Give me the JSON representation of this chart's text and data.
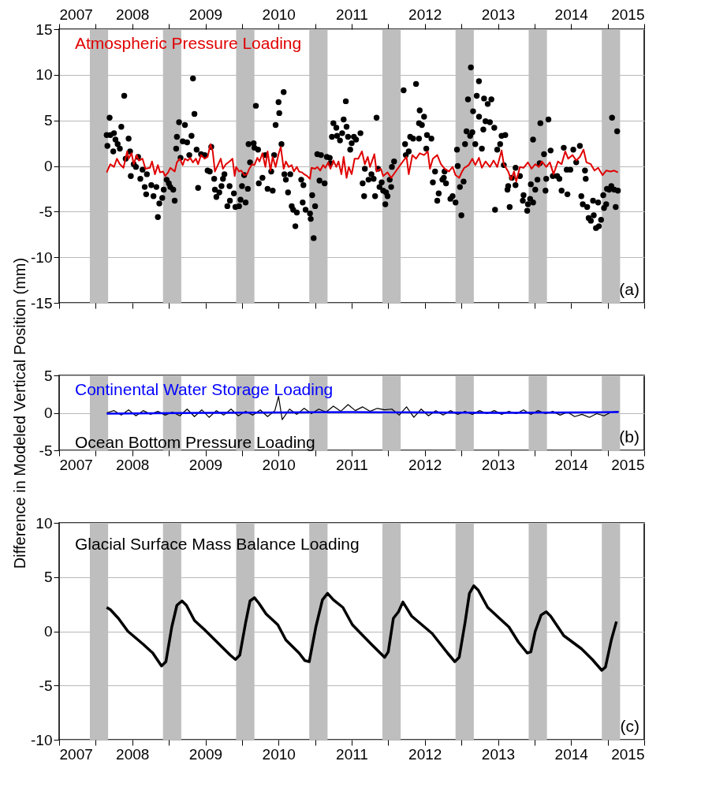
{
  "chart_data": [
    {
      "type": "scatter",
      "ylabel": null,
      "annotations": [
        "(a)"
      ],
      "grid": "y",
      "tick_labels": "y",
      "xlim": [
        2007,
        2015
      ],
      "xticks": [
        2007,
        {
          "value": 2007.5,
          "label": null
        },
        2008,
        {
          "value": 2008.5,
          "label": null
        },
        2009,
        {
          "value": 2009.5,
          "label": null
        },
        2010,
        {
          "value": 2010.5,
          "label": null
        },
        2011,
        {
          "value": 2011.5,
          "label": null
        },
        2012,
        {
          "value": 2012.5,
          "label": null
        },
        2013,
        {
          "value": 2013.5,
          "label": null
        },
        2014,
        {
          "value": 2014.5,
          "label": null
        },
        2015
      ],
      "x2lim": [
        2007,
        2015
      ],
      "x2ticks": [
        2007,
        {
          "value": 2007.5,
          "label": null
        },
        2008,
        {
          "value": 2008.5,
          "label": null
        },
        2009,
        {
          "value": 2009.5,
          "label": null
        },
        2010,
        {
          "value": 2010.5,
          "label": null
        },
        2011,
        {
          "value": 2011.5,
          "label": null
        },
        2012,
        {
          "value": 2012.5,
          "label": null
        },
        2013,
        {
          "value": 2013.5,
          "label": null
        },
        2014,
        {
          "value": 2014.5,
          "label": null
        },
        2015
      ],
      "ylim": [
        -15,
        15
      ],
      "yticks": [
        -15,
        -10,
        -5,
        0,
        5,
        10,
        15
      ],
      "bands": [
        {
          "axis": "x",
          "from": 2007.42,
          "to": 2007.67,
          "color": "#bebebe"
        },
        {
          "axis": "x",
          "from": 2008.42,
          "to": 2008.67,
          "color": "#bebebe"
        },
        {
          "axis": "x",
          "from": 2009.42,
          "to": 2009.67,
          "color": "#bebebe"
        },
        {
          "axis": "x",
          "from": 2010.42,
          "to": 2010.67,
          "color": "#bebebe"
        },
        {
          "axis": "x",
          "from": 2011.42,
          "to": 2011.67,
          "color": "#bebebe"
        },
        {
          "axis": "x",
          "from": 2012.42,
          "to": 2012.67,
          "color": "#bebebe"
        },
        {
          "axis": "x",
          "from": 2013.42,
          "to": 2013.67,
          "color": "#bebebe"
        },
        {
          "axis": "x",
          "from": 2014.42,
          "to": 2014.67,
          "color": "#bebebe"
        }
      ],
      "series": [
        {
          "color": "#000000",
          "marker": "circle",
          "x": [
            2007.69,
            2007.65,
            2007.7,
            2007.75,
            2007.66,
            2007.74,
            2007.77,
            2007.8,
            2007.83,
            2007.89,
            2007.85,
            2007.95,
            2007.91,
            2007.97,
            2008.02,
            2008.05,
            2008.08,
            2007.98,
            2008.14,
            2008.11,
            2008.17,
            2008.2,
            2008.19,
            2008.26,
            2008.29,
            2008.33,
            2008.35,
            2008.37,
            2008.41,
            2008.43,
            2008.47,
            2008.5,
            2008.52,
            2008.56,
            2008.58,
            2008.6,
            2008.61,
            2008.64,
            2008.72,
            2008.66,
            2008.69,
            2008.75,
            2008.78,
            2008.81,
            2008.83,
            2008.85,
            2008.88,
            2008.9,
            2008.94,
            2008.99,
            2009.03,
            2009.06,
            2009.08,
            2009.12,
            2009.13,
            2009.15,
            2009.19,
            2009.22,
            2009.24,
            2009.26,
            2009.3,
            2009.33,
            2009.335,
            2009.39,
            2009.41,
            2009.46,
            2009.48,
            2009.5,
            2009.53,
            2009.55,
            2009.58,
            2009.59,
            2009.66,
            2009.67,
            2009.69,
            2009.61,
            2009.72,
            2009.73,
            2009.78,
            2009.82,
            2009.85,
            2009.92,
            2009.9,
            2009.94,
            2009.96,
            2010.0,
            2010.01,
            2010.04,
            2010.07,
            2010.08,
            2010.1,
            2010.13,
            2010.16,
            2010.18,
            2010.2,
            2010.23,
            2010.25,
            2010.31,
            2010.33,
            2010.34,
            2010.37,
            2010.43,
            2010.44,
            2010.46,
            2010.48,
            2010.5,
            2010.53,
            2010.56,
            2010.58,
            2010.63,
            2010.66,
            2010.7,
            2010.71,
            2010.75,
            2010.79,
            2010.73,
            2010.8,
            2010.84,
            2010.89,
            2010.92,
            2010.93,
            2010.87,
            2010.95,
            2010.98,
            2011.0,
            2011.03,
            2011.06,
            2011.12,
            2011.34,
            2011.15,
            2011.18,
            2011.23,
            2011.27,
            2011.17,
            2011.32,
            2011.3,
            2011.36,
            2011.38,
            2011.41,
            2011.43,
            2011.47,
            2011.49,
            2011.46,
            2011.52,
            2011.54,
            2011.55,
            2011.58,
            2011.71,
            2011.73,
            2011.74,
            2011.78,
            2011.8,
            2011.84,
            2011.88,
            2011.92,
            2011.921,
            2011.93,
            2011.96,
            2011.99,
            2012.02,
            2012.03,
            2012.09,
            2012.11,
            2012.14,
            2012.17,
            2012.19,
            2012.24,
            2012.26,
            2012.27,
            2012.29,
            2012.35,
            2012.38,
            2012.42,
            2012.44,
            2012.45,
            2012.48,
            2012.5,
            2012.53,
            2012.55,
            2012.57,
            2012.59,
            2012.62,
            2012.63,
            2012.65,
            2012.66,
            2012.69,
            2012.71,
            2012.74,
            2012.741,
            2012.8,
            2012.81,
            2012.83,
            2012.86,
            2012.78,
            2012.89,
            2012.91,
            2012.95,
            2012.96,
            2012.99,
            2013.03,
            2013.05,
            2013.1,
            2013.08,
            2013.13,
            2013.14,
            2013.16,
            2013.19,
            2013.24,
            2013.241,
            2013.3,
            2013.35,
            2013.34,
            2013.4,
            2013.41,
            2013.44,
            2013.45,
            2013.48,
            2013.481,
            2013.51,
            2013.54,
            2013.57,
            2013.58,
            2013.63,
            2013.65,
            2013.66,
            2013.69,
            2013.72,
            2013.75,
            2013.81,
            2013.84,
            2013.87,
            2013.9,
            2013.94,
            2013.95,
            2013.99,
            2014.03,
            2014.07,
            2014.12,
            2014.14,
            2014.16,
            2014.19,
            2014.2,
            2014.22,
            2014.24,
            2014.27,
            2014.31,
            2014.3,
            2014.34,
            2014.37,
            2014.38,
            2014.41,
            2014.44,
            2014.45,
            2014.48,
            2014.49,
            2014.52,
            2014.55,
            2014.56,
            2014.59,
            2014.61,
            2014.63,
            2014.64
          ],
          "values": [
            5.3,
            3.4,
            3.4,
            3.6,
            2.2,
            1.6,
            2.9,
            2.4,
            1.9,
            7.7,
            4.3,
            3.0,
            0.8,
            1.6,
            0.2,
            -0.1,
            1.0,
            -1.1,
            -0.4,
            -1.4,
            -2.3,
            -0.9,
            -3.1,
            -2.1,
            -3.3,
            -2.3,
            -5.6,
            -4.1,
            -3.5,
            -2.6,
            -1.5,
            -1.9,
            -2.3,
            -2.6,
            -3.8,
            1.9,
            3.2,
            4.8,
            4.5,
            0.9,
            2.7,
            2.6,
            1.2,
            3.3,
            9.6,
            5.7,
            1.8,
            -2.4,
            1.3,
            1.2,
            -0.5,
            -0.6,
            2.1,
            -1.4,
            -2.6,
            -3.4,
            -2.9,
            -2.2,
            -1.4,
            -0.9,
            -4.4,
            -2.2,
            -3.8,
            -3.0,
            -4.5,
            -4.4,
            -3.7,
            -2.2,
            -1.0,
            -4.0,
            -2.5,
            2.4,
            2.5,
            2.0,
            6.6,
            0.4,
            1.8,
            -1.9,
            -1.3,
            1.2,
            -2.5,
            -2.7,
            -0.6,
            1.2,
            4.5,
            7.0,
            5.8,
            2.4,
            8.1,
            -0.9,
            -1.5,
            -2.9,
            -0.9,
            -4.4,
            -4.8,
            -6.6,
            -5.1,
            -1.5,
            -4.0,
            -2.1,
            -4.8,
            -5.2,
            -5.8,
            -3.2,
            -7.9,
            -4.4,
            1.3,
            -1.6,
            1.2,
            -1.9,
            1.0,
            0.9,
            0.3,
            4.7,
            4.2,
            3.2,
            3.3,
            2.8,
            5.1,
            7.1,
            4.3,
            3.6,
            3.2,
            1.8,
            2.5,
            3.2,
            2.9,
            3.6,
            5.3,
            -1.9,
            -0.3,
            -1.5,
            -0.9,
            -3.3,
            -3.3,
            -1.4,
            -0.3,
            -2.3,
            -1.8,
            -2.7,
            -2.9,
            -3.3,
            -4.2,
            -1.5,
            -2.3,
            -0.1,
            0.5,
            8.3,
            2.4,
            1.2,
            1.6,
            3.2,
            3.0,
            9.0,
            3.0,
            4.7,
            6.1,
            4.5,
            5.4,
            1.9,
            3.4,
            3.0,
            -1.8,
            -0.6,
            -3.8,
            -3.0,
            -1.5,
            -1.3,
            -0.6,
            -1.9,
            -3.6,
            -3.3,
            -4.0,
            1.8,
            0.0,
            -2.3,
            -5.4,
            -1.7,
            2.4,
            3.8,
            7.3,
            3.3,
            10.8,
            3.7,
            6.0,
            2.4,
            7.7,
            9.3,
            5.4,
            4.0,
            7.4,
            4.9,
            6.8,
            1.9,
            4.8,
            7.3,
            4.2,
            -4.8,
            1.8,
            2.4,
            3.3,
            3.4,
            0.1,
            -2.6,
            -2.2,
            -4.5,
            -1.3,
            -2.1,
            -0.2,
            -1.1,
            -3.2,
            -3.8,
            -4.9,
            -4.2,
            -3.6,
            -2.0,
            2.9,
            -4.0,
            -2.6,
            -1.5,
            0.3,
            4.7,
            1.3,
            -2.7,
            -1.4,
            5.1,
            1.7,
            -1.1,
            -1.1,
            -1.4,
            -2.7,
            2.0,
            -0.4,
            -3.1,
            -0.4,
            1.8,
            0.4,
            2.2,
            -3.3,
            -4.2,
            -0.5,
            -1.4,
            -4.5,
            -5.7,
            -6.0,
            -5.4,
            -3.8,
            -6.8,
            -4.0,
            -6.6,
            -5.9,
            -3.2,
            -4.6,
            -4.2,
            -2.5,
            -2.6,
            -2.2,
            5.3,
            -2.6,
            -4.5,
            3.8,
            -2.7
          ]
        },
        {
          "type": "line",
          "name": "Atmospheric Pressure Loading",
          "color": "#e00000",
          "x": [
            2007.65,
            2007.7,
            2007.75,
            2007.79,
            2007.83,
            2007.88,
            2007.93,
            2007.95,
            2007.99,
            2008.02,
            2008.06,
            2008.09,
            2008.14,
            2008.18,
            2008.24,
            2008.27,
            2008.31,
            2008.35,
            2008.38,
            2008.42,
            2008.45,
            2008.49,
            2008.52,
            2008.58,
            2008.61,
            2008.65,
            2008.69,
            2008.72,
            2008.76,
            2008.79,
            2008.83,
            2008.87,
            2008.9,
            2008.94,
            2008.99,
            2009.03,
            2009.07,
            2009.1,
            2009.13,
            2009.17,
            2009.21,
            2009.24,
            2009.28,
            2009.33,
            2009.37,
            2009.4,
            2009.42,
            2009.46,
            2009.49,
            2009.53,
            2009.57,
            2009.6,
            2009.64,
            2009.67,
            2009.71,
            2009.74,
            2009.78,
            2009.82,
            2009.85,
            2009.89,
            2009.92,
            2009.96,
            2010.0,
            2010.03,
            2010.07,
            2010.1,
            2010.14,
            2010.18,
            2010.21,
            2010.25,
            2010.28,
            2010.32,
            2010.35,
            2010.39,
            2010.43,
            2010.45,
            2010.5,
            2010.53,
            2010.57,
            2010.61,
            2010.64,
            2010.68,
            2010.71,
            2010.75,
            2010.79,
            2010.82,
            2010.86,
            2010.89,
            2010.93,
            2010.96,
            2011.0,
            2011.04,
            2011.09,
            2011.14,
            2011.18,
            2011.22,
            2011.25,
            2011.31,
            2011.34,
            2011.4,
            2011.43,
            2011.49,
            2011.54,
            2011.61,
            2011.7,
            2011.75,
            2011.78,
            2011.83,
            2011.88,
            2011.93,
            2011.99,
            2012.04,
            2012.07,
            2012.11,
            2012.17,
            2012.22,
            2012.27,
            2012.33,
            2012.38,
            2012.42,
            2012.47,
            2012.51,
            2012.54,
            2012.6,
            2012.65,
            2012.69,
            2012.74,
            2012.78,
            2012.83,
            2012.89,
            2012.94,
            2012.99,
            2013.05,
            2013.08,
            2013.14,
            2013.18,
            2013.22,
            2013.25,
            2013.3,
            2013.35,
            2013.41,
            2013.46,
            2013.51,
            2013.56,
            2013.6,
            2013.66,
            2013.71,
            2013.76,
            2013.82,
            2013.87,
            2013.92,
            2013.96,
            2014.02,
            2014.07,
            2014.12,
            2014.17,
            2014.21,
            2014.27,
            2014.32,
            2014.37,
            2014.43,
            2014.48,
            2014.54,
            2014.59,
            2014.64
          ],
          "values": [
            -0.7,
            0.2,
            -0.1,
            0.8,
            0.2,
            -0.2,
            1.6,
            0.8,
            1.4,
            0.2,
            1.2,
            0.6,
            0.8,
            -0.3,
            -0.2,
            0.5,
            -0.9,
            0.1,
            -0.7,
            -0.6,
            -1.1,
            -0.7,
            -0.2,
            -0.6,
            0.4,
            0.8,
            0.1,
            0.8,
            0.6,
            0.9,
            0.4,
            0.8,
            0.2,
            1.2,
            0.8,
            1.0,
            2.4,
            1.6,
            -0.6,
            0.1,
            0.8,
            -0.3,
            0.2,
            0.5,
            0.8,
            -1.1,
            -0.1,
            -0.6,
            -0.5,
            -1.0,
            -0.9,
            -0.3,
            0.2,
            0.1,
            0.9,
            0.5,
            1.4,
            -0.1,
            1.6,
            -0.5,
            1.0,
            -0.1,
            1.3,
            2.1,
            -0.3,
            0.5,
            -0.1,
            0.1,
            -0.6,
            -0.1,
            -0.6,
            -0.7,
            -0.9,
            -1.1,
            -1.4,
            -0.2,
            -0.3,
            -0.1,
            -0.5,
            0.1,
            -0.2,
            0.4,
            -0.3,
            0.6,
            -0.1,
            0.5,
            -0.9,
            1.0,
            -1.3,
            -0.1,
            -0.9,
            0.8,
            0.8,
            1.6,
            0.2,
            1.0,
            -0.1,
            1.3,
            -0.6,
            -0.3,
            -1.1,
            -0.7,
            -1.3,
            -0.5,
            0.5,
            1.0,
            -0.9,
            1.2,
            0.8,
            1.4,
            1.2,
            1.6,
            -0.3,
            0.8,
            1.2,
            0.2,
            -0.3,
            -0.6,
            -0.1,
            -1.0,
            -1.3,
            -0.6,
            -0.2,
            0.1,
            0.8,
            0.1,
            0.9,
            -0.2,
            0.5,
            -0.1,
            0.6,
            -0.1,
            1.7,
            0.2,
            -0.6,
            -1.5,
            -0.6,
            -1.7,
            -0.1,
            -0.2,
            0.4,
            -0.3,
            0.2,
            -0.1,
            0.5,
            -0.1,
            0.4,
            -0.9,
            0.5,
            0.2,
            1.6,
            0.8,
            1.2,
            0.6,
            1.0,
            1.8,
            0.4,
            0.2,
            -0.5,
            -0.2,
            -1.0,
            -0.5,
            -0.6,
            -0.5,
            -0.7
          ]
        }
      ]
    },
    {
      "type": "line",
      "ylabel": "Difference in Modeled Vertical Position (mm)",
      "annotations": [
        "(b)"
      ],
      "grid": "y",
      "xlim": [
        2007,
        2015
      ],
      "xticks": [
        2007,
        {
          "value": 2007.5,
          "label": null
        },
        2008,
        {
          "value": 2008.5,
          "label": null
        },
        2009,
        {
          "value": 2009.5,
          "label": null
        },
        2010,
        {
          "value": 2010.5,
          "label": null
        },
        2011,
        {
          "value": 2011.5,
          "label": null
        },
        2012,
        {
          "value": 2012.5,
          "label": null
        },
        2013,
        {
          "value": 2013.5,
          "label": null
        },
        2014,
        {
          "value": 2014.5,
          "label": null
        },
        2015
      ],
      "ylim": [
        -5,
        5
      ],
      "yticks": [
        -5,
        0,
        5
      ],
      "bands": [
        {
          "axis": "x",
          "from": 2007.42,
          "to": 2007.67,
          "color": "#bebebe"
        },
        {
          "axis": "x",
          "from": 2008.42,
          "to": 2008.67,
          "color": "#bebebe"
        },
        {
          "axis": "x",
          "from": 2009.42,
          "to": 2009.67,
          "color": "#bebebe"
        },
        {
          "axis": "x",
          "from": 2010.42,
          "to": 2010.67,
          "color": "#bebebe"
        },
        {
          "axis": "x",
          "from": 2011.42,
          "to": 2011.67,
          "color": "#bebebe"
        },
        {
          "axis": "x",
          "from": 2012.42,
          "to": 2012.67,
          "color": "#bebebe"
        },
        {
          "axis": "x",
          "from": 2013.42,
          "to": 2013.67,
          "color": "#bebebe"
        },
        {
          "axis": "x",
          "from": 2014.42,
          "to": 2014.67,
          "color": "#bebebe"
        }
      ],
      "series": [
        {
          "name": "Ocean Bottom Pressure Loading",
          "color": "#000000",
          "x": [
            2007.65,
            2007.75,
            2007.85,
            2007.95,
            2008.05,
            2008.15,
            2008.25,
            2008.35,
            2008.45,
            2008.55,
            2008.65,
            2008.75,
            2008.85,
            2008.95,
            2009.05,
            2009.15,
            2009.25,
            2009.35,
            2009.45,
            2009.55,
            2009.65,
            2009.75,
            2009.85,
            2009.95,
            2010.0,
            2010.05,
            2010.15,
            2010.25,
            2010.35,
            2010.45,
            2010.55,
            2010.65,
            2010.75,
            2010.85,
            2010.95,
            2011.05,
            2011.15,
            2011.25,
            2011.35,
            2011.45,
            2011.55,
            2011.65,
            2011.75,
            2011.85,
            2011.95,
            2012.05,
            2012.15,
            2012.25,
            2012.35,
            2012.45,
            2012.55,
            2012.65,
            2012.75,
            2012.85,
            2012.95,
            2013.05,
            2013.15,
            2013.25,
            2013.35,
            2013.45,
            2013.55,
            2013.65,
            2013.75,
            2013.85,
            2013.95,
            2014.05,
            2014.15,
            2014.25,
            2014.35,
            2014.45,
            2014.55,
            2014.65
          ],
          "values": [
            0.0,
            0.3,
            -0.3,
            0.4,
            -0.4,
            0.3,
            -0.2,
            0.2,
            -0.3,
            0.1,
            -0.4,
            0.5,
            -0.5,
            0.4,
            -0.6,
            0.3,
            -0.3,
            0.5,
            -0.4,
            0.2,
            -0.3,
            0.4,
            -0.5,
            0.3,
            2.2,
            -0.9,
            0.5,
            -0.2,
            0.6,
            -0.1,
            0.5,
            0.1,
            0.9,
            0.2,
            1.1,
            0.3,
            0.8,
            0.2,
            0.6,
            0.4,
            0.5,
            -0.3,
            0.8,
            -0.6,
            0.5,
            -0.4,
            0.3,
            -0.3,
            0.3,
            -0.2,
            0.2,
            -0.2,
            0.3,
            -0.1,
            0.3,
            -0.2,
            0.2,
            -0.1,
            0.4,
            -0.2,
            0.3,
            -0.1,
            0.2,
            -0.3,
            0.1,
            -0.5,
            -0.2,
            -0.6,
            -0.1,
            -0.4,
            0.1,
            0.2
          ]
        },
        {
          "name": "Continental Water Storage Loading",
          "color": "#0000ff",
          "x": [
            2007.65,
            2009,
            2011,
            2013,
            2014.65
          ],
          "values": [
            -0.1,
            0.0,
            0.1,
            0.0,
            0.1
          ]
        }
      ]
    },
    {
      "type": "line",
      "annotations": [
        "(c)"
      ],
      "grid": "y",
      "xlim": [
        2007,
        2015
      ],
      "xticks": [
        2007,
        {
          "value": 2007.5,
          "label": null
        },
        2008,
        {
          "value": 2008.5,
          "label": null
        },
        2009,
        {
          "value": 2009.5,
          "label": null
        },
        2010,
        {
          "value": 2010.5,
          "label": null
        },
        2011,
        {
          "value": 2011.5,
          "label": null
        },
        2012,
        {
          "value": 2012.5,
          "label": null
        },
        2013,
        {
          "value": 2013.5,
          "label": null
        },
        2014,
        {
          "value": 2014.5,
          "label": null
        },
        2015
      ],
      "ylim": [
        -10,
        10
      ],
      "yticks": [
        -10,
        -5,
        0,
        5,
        10
      ],
      "bands": [
        {
          "axis": "x",
          "from": 2007.42,
          "to": 2007.67,
          "color": "#bebebe"
        },
        {
          "axis": "x",
          "from": 2008.42,
          "to": 2008.67,
          "color": "#bebebe"
        },
        {
          "axis": "x",
          "from": 2009.42,
          "to": 2009.67,
          "color": "#bebebe"
        },
        {
          "axis": "x",
          "from": 2010.42,
          "to": 2010.67,
          "color": "#bebebe"
        },
        {
          "axis": "x",
          "from": 2011.42,
          "to": 2011.67,
          "color": "#bebebe"
        },
        {
          "axis": "x",
          "from": 2012.42,
          "to": 2012.67,
          "color": "#bebebe"
        },
        {
          "axis": "x",
          "from": 2013.42,
          "to": 2013.67,
          "color": "#bebebe"
        },
        {
          "axis": "x",
          "from": 2014.42,
          "to": 2014.67,
          "color": "#bebebe"
        }
      ],
      "series": [
        {
          "name": "Glacial Surface Mass Balance Loading",
          "color": "#000000",
          "x": [
            2007.65,
            2007.7,
            2007.81,
            2007.94,
            2008.15,
            2008.28,
            2008.4,
            2008.46,
            2008.54,
            2008.61,
            2008.68,
            2008.74,
            2008.85,
            2008.98,
            2009.19,
            2009.34,
            2009.41,
            2009.47,
            2009.55,
            2009.61,
            2009.67,
            2009.73,
            2009.83,
            2009.99,
            2010.1,
            2010.28,
            2010.36,
            2010.42,
            2010.51,
            2010.6,
            2010.67,
            2010.75,
            2010.88,
            2011.01,
            2011.27,
            2011.45,
            2011.5,
            2011.57,
            2011.64,
            2011.7,
            2011.82,
            2012.1,
            2012.31,
            2012.41,
            2012.47,
            2012.55,
            2012.61,
            2012.67,
            2012.73,
            2012.86,
            2013.02,
            2013.15,
            2013.28,
            2013.4,
            2013.45,
            2013.51,
            2013.59,
            2013.66,
            2013.72,
            2013.9,
            2014.14,
            2014.29,
            2014.42,
            2014.47,
            2014.55,
            2014.62
          ],
          "values": [
            2.2,
            2.0,
            1.2,
            0.0,
            -1.2,
            -2.0,
            -3.2,
            -2.8,
            0.4,
            2.4,
            2.8,
            2.4,
            1.0,
            0.2,
            -1.2,
            -2.2,
            -2.6,
            -2.2,
            0.8,
            2.8,
            3.1,
            2.6,
            1.6,
            0.6,
            -0.8,
            -2.0,
            -2.7,
            -2.8,
            0.4,
            2.9,
            3.5,
            2.9,
            2.2,
            0.6,
            -1.2,
            -2.4,
            -1.9,
            1.2,
            1.8,
            2.7,
            1.4,
            -0.2,
            -2.0,
            -2.8,
            -2.4,
            0.8,
            3.5,
            4.2,
            3.8,
            2.2,
            1.2,
            0.4,
            -1.0,
            -2.0,
            -1.9,
            0.0,
            1.5,
            1.8,
            1.4,
            -0.4,
            -1.6,
            -2.6,
            -3.6,
            -3.3,
            -0.8,
            0.9
          ]
        }
      ]
    }
  ]
}
